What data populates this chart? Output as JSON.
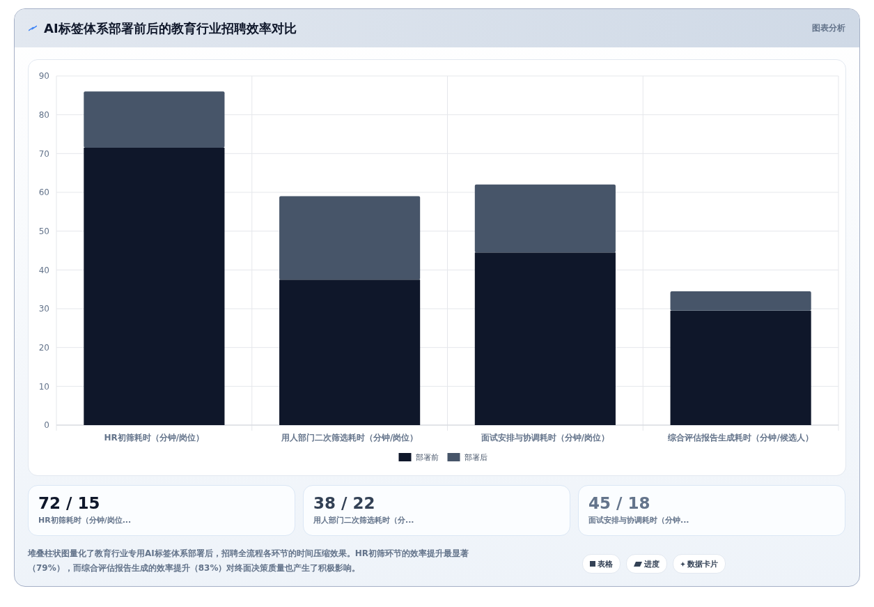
{
  "chart_data": {
    "type": "bar",
    "title": "AI标签体系部署前后的教育行业招聘效率对比",
    "stacked": true,
    "categories": [
      "HR初筛耗时（分钟/岗位）",
      "用人部门二次筛选耗时（分钟/岗位）",
      "面试安排与协调耗时（分钟/岗位）",
      "综合评估报告生成耗时（分钟/候选人）"
    ],
    "series": [
      {
        "name": "部署前",
        "color": "#0f172a",
        "values": [
          71.5,
          37.5,
          44.5,
          29.5
        ]
      },
      {
        "name": "部署后",
        "color": "#475569",
        "values": [
          14.5,
          21.5,
          17.5,
          5
        ]
      }
    ],
    "ylim": [
      0,
      90
    ],
    "yticks": [
      0,
      10,
      20,
      30,
      40,
      50,
      60,
      70,
      80,
      90
    ],
    "grid": true,
    "legend": "bottom",
    "annotations": [
      "图表分析",
      "72 / 15",
      "38 / 22",
      "45 / 18",
      "HR初筛耗时（分钟/岗位...",
      "用人部门二次筛选耗时（分...",
      "面试安排与协调耗时（分钟...",
      "堆叠柱状图量化了教育行业专用AI标签体系部署后，招聘全流程各环节的时间压缩效果。HR初筛环节的效率提升最显著（79%），而综合评估报告生成的效率提升（83%）对终面决策质量也产生了积极影响。",
      "表格",
      "进度",
      "数据卡片"
    ]
  }
}
